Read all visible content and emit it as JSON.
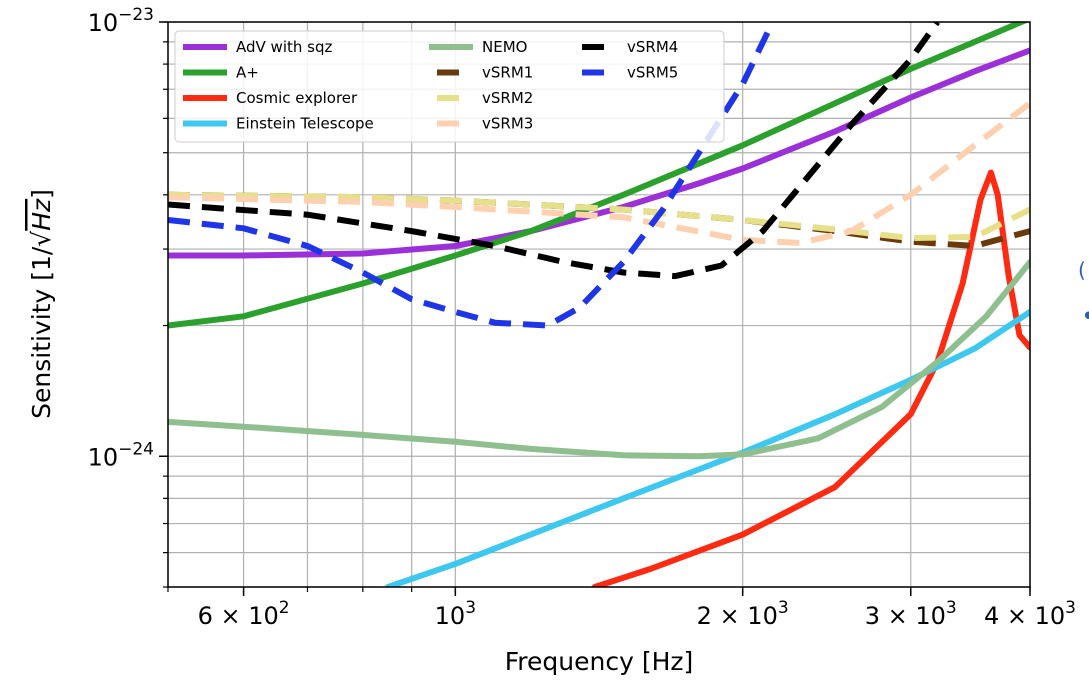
{
  "chart_data": {
    "type": "line",
    "xlabel": "Frequency [Hz]",
    "ylabel_text": "Sensitivity [1/",
    "ylabel_radicand": "Hz",
    "ylabel_close": "]",
    "x_scale": "log",
    "y_scale": "log",
    "xlim": [
      500,
      4000
    ],
    "ylim": [
      5e-25,
      1e-23
    ],
    "grid": true,
    "legend_position": "top-left",
    "legend_columns": 3,
    "x_ticks": [
      {
        "value": 600,
        "mantissa": "6",
        "exponent": "2"
      },
      {
        "value": 1000,
        "mantissa": "",
        "exponent": "3"
      },
      {
        "value": 2000,
        "mantissa": "2",
        "exponent": "3"
      },
      {
        "value": 3000,
        "mantissa": "3",
        "exponent": "3"
      },
      {
        "value": 4000,
        "mantissa": "4",
        "exponent": "3"
      }
    ],
    "y_ticks": [
      {
        "value": 1e-23,
        "exponent": "−23"
      },
      {
        "value": 1e-24,
        "exponent": "−24"
      }
    ],
    "series": [
      {
        "name": "AdV with sqz",
        "color": "#9b30d9",
        "style": "solid",
        "points": [
          [
            500,
            2.9e-24
          ],
          [
            600,
            2.9e-24
          ],
          [
            800,
            2.93e-24
          ],
          [
            1000,
            3.05e-24
          ],
          [
            1200,
            3.3e-24
          ],
          [
            1500,
            3.75e-24
          ],
          [
            1800,
            4.25e-24
          ],
          [
            2000,
            4.6e-24
          ],
          [
            2500,
            5.6e-24
          ],
          [
            3000,
            6.7e-24
          ],
          [
            3500,
            7.7e-24
          ],
          [
            4000,
            8.6e-24
          ]
        ]
      },
      {
        "name": "A+",
        "color": "#2ca02c",
        "style": "solid",
        "points": [
          [
            500,
            2e-24
          ],
          [
            600,
            2.1e-24
          ],
          [
            800,
            2.5e-24
          ],
          [
            1000,
            2.9e-24
          ],
          [
            1200,
            3.3e-24
          ],
          [
            1500,
            4e-24
          ],
          [
            2000,
            5.2e-24
          ],
          [
            2500,
            6.5e-24
          ],
          [
            3000,
            7.8e-24
          ],
          [
            3500,
            9e-24
          ],
          [
            4000,
            1.02e-23
          ]
        ]
      },
      {
        "name": "Cosmic explorer",
        "color": "#ff2a12",
        "style": "solid",
        "points": [
          [
            1400,
            5e-25
          ],
          [
            1600,
            5.5e-25
          ],
          [
            2000,
            6.6e-25
          ],
          [
            2500,
            8.5e-25
          ],
          [
            3000,
            1.25e-24
          ],
          [
            3200,
            1.65e-24
          ],
          [
            3400,
            2.5e-24
          ],
          [
            3550,
            3.9e-24
          ],
          [
            3640,
            4.5e-24
          ],
          [
            3700,
            4e-24
          ],
          [
            3800,
            2.6e-24
          ],
          [
            3900,
            1.9e-24
          ],
          [
            4000,
            1.78e-24
          ]
        ]
      },
      {
        "name": "Einstein Telescope",
        "color": "#3ec8ef",
        "style": "solid",
        "points": [
          [
            850,
            5e-25
          ],
          [
            1000,
            5.65e-25
          ],
          [
            1500,
            8e-25
          ],
          [
            2000,
            1.02e-24
          ],
          [
            2500,
            1.25e-24
          ],
          [
            3000,
            1.5e-24
          ],
          [
            3500,
            1.77e-24
          ],
          [
            4000,
            2.15e-24
          ]
        ]
      },
      {
        "name": "NEMO",
        "color": "#8fbf8f",
        "style": "solid",
        "points": [
          [
            500,
            1.2e-24
          ],
          [
            600,
            1.17e-24
          ],
          [
            800,
            1.12e-24
          ],
          [
            1000,
            1.08e-24
          ],
          [
            1200,
            1.04e-24
          ],
          [
            1500,
            1.005e-24
          ],
          [
            1800,
            1e-24
          ],
          [
            2000,
            1.01e-24
          ],
          [
            2400,
            1.1e-24
          ],
          [
            2800,
            1.3e-24
          ],
          [
            3200,
            1.65e-24
          ],
          [
            3600,
            2.1e-24
          ],
          [
            4000,
            2.8e-24
          ]
        ]
      },
      {
        "name": "vSRM1",
        "color": "#6b3a0c",
        "style": "dashed",
        "points": [
          [
            500,
            4e-24
          ],
          [
            800,
            3.95e-24
          ],
          [
            1000,
            3.88e-24
          ],
          [
            1500,
            3.7e-24
          ],
          [
            2000,
            3.5e-24
          ],
          [
            2500,
            3.3e-24
          ],
          [
            3000,
            3.12e-24
          ],
          [
            3500,
            3.05e-24
          ],
          [
            4000,
            3.3e-24
          ]
        ]
      },
      {
        "name": "vSRM2",
        "color": "#e6e08a",
        "style": "dashed",
        "points": [
          [
            500,
            4e-24
          ],
          [
            800,
            3.95e-24
          ],
          [
            1000,
            3.88e-24
          ],
          [
            1500,
            3.7e-24
          ],
          [
            2000,
            3.5e-24
          ],
          [
            2500,
            3.33e-24
          ],
          [
            3000,
            3.18e-24
          ],
          [
            3500,
            3.2e-24
          ],
          [
            4000,
            3.7e-24
          ]
        ]
      },
      {
        "name": "vSRM3",
        "color": "#fdd0b0",
        "style": "dashed",
        "points": [
          [
            500,
            3.95e-24
          ],
          [
            800,
            3.85e-24
          ],
          [
            1000,
            3.75e-24
          ],
          [
            1500,
            3.55e-24
          ],
          [
            2000,
            3.15e-24
          ],
          [
            2300,
            3.1e-24
          ],
          [
            2600,
            3.3e-24
          ],
          [
            3000,
            4e-24
          ],
          [
            3500,
            5.2e-24
          ],
          [
            4000,
            6.5e-24
          ]
        ]
      },
      {
        "name": "vSRM4",
        "color": "#000000",
        "style": "dashed",
        "points": [
          [
            500,
            3.8e-24
          ],
          [
            700,
            3.6e-24
          ],
          [
            900,
            3.3e-24
          ],
          [
            1100,
            3.05e-24
          ],
          [
            1300,
            2.8e-24
          ],
          [
            1500,
            2.65e-24
          ],
          [
            1700,
            2.6e-24
          ],
          [
            1900,
            2.75e-24
          ],
          [
            2100,
            3.3e-24
          ],
          [
            2300,
            4.2e-24
          ],
          [
            2600,
            5.8e-24
          ],
          [
            3000,
            8.2e-24
          ],
          [
            3200,
            1e-23
          ]
        ]
      },
      {
        "name": "vSRM5",
        "color": "#1f35e8",
        "style": "dashed",
        "points": [
          [
            500,
            3.5e-24
          ],
          [
            600,
            3.35e-24
          ],
          [
            700,
            3.05e-24
          ],
          [
            800,
            2.65e-24
          ],
          [
            900,
            2.3e-24
          ],
          [
            1000,
            2.15e-24
          ],
          [
            1100,
            2.03e-24
          ],
          [
            1250,
            2e-24
          ],
          [
            1350,
            2.2e-24
          ],
          [
            1500,
            2.8e-24
          ],
          [
            1650,
            3.7e-24
          ],
          [
            1800,
            5e-24
          ],
          [
            2000,
            7.2e-24
          ],
          [
            2150,
            1e-23
          ]
        ]
      }
    ]
  }
}
